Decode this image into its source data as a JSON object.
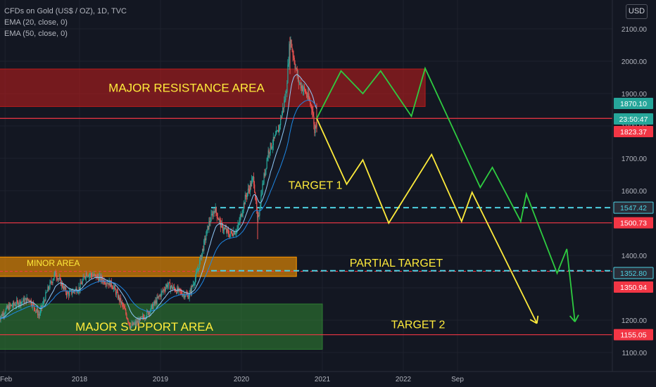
{
  "header": {
    "symbol": "CFDs on Gold (US$ / OZ), 1D, TVC",
    "indicators": [
      "EMA (20, close, 0)",
      "EMA (50, close, 0)"
    ],
    "currency": "USD"
  },
  "chart_data": {
    "type": "candlestick",
    "y_axis": {
      "ylim": [
        1080,
        2150
      ],
      "ticks": [
        1100,
        1200,
        1300,
        1400,
        1500,
        1600,
        1700,
        1800,
        1900,
        2000,
        2100
      ],
      "tick_labels": [
        "1100.00",
        "1200.00",
        "1300.00",
        "1400.00",
        "1500.00",
        "1600.00",
        "1700.00",
        "1800.00",
        "1900.00",
        "2000.00",
        "2100.00"
      ]
    },
    "x_axis": {
      "ticks": [
        {
          "label": "Feb",
          "t": 2017.08
        },
        {
          "label": "2018",
          "t": 2018.0
        },
        {
          "label": "2019",
          "t": 2019.0
        },
        {
          "label": "2020",
          "t": 2020.0
        },
        {
          "label": "2021",
          "t": 2021.0
        },
        {
          "label": "2022",
          "t": 2022.0
        },
        {
          "label": "Sep",
          "t": 2022.67
        }
      ]
    },
    "price_path": [
      [
        2017.0,
        1205
      ],
      [
        2017.12,
        1240
      ],
      [
        2017.25,
        1255
      ],
      [
        2017.38,
        1265
      ],
      [
        2017.5,
        1215
      ],
      [
        2017.6,
        1290
      ],
      [
        2017.7,
        1345
      ],
      [
        2017.85,
        1280
      ],
      [
        2018.0,
        1300
      ],
      [
        2018.08,
        1345
      ],
      [
        2018.25,
        1330
      ],
      [
        2018.4,
        1310
      ],
      [
        2018.55,
        1235
      ],
      [
        2018.63,
        1180
      ],
      [
        2018.75,
        1200
      ],
      [
        2018.85,
        1225
      ],
      [
        2018.95,
        1260
      ],
      [
        2019.08,
        1310
      ],
      [
        2019.25,
        1285
      ],
      [
        2019.35,
        1275
      ],
      [
        2019.45,
        1345
      ],
      [
        2019.6,
        1500
      ],
      [
        2019.67,
        1545
      ],
      [
        2019.75,
        1490
      ],
      [
        2019.85,
        1465
      ],
      [
        2019.95,
        1480
      ],
      [
        2020.05,
        1580
      ],
      [
        2020.15,
        1640
      ],
      [
        2020.2,
        1500
      ],
      [
        2020.25,
        1600
      ],
      [
        2020.33,
        1720
      ],
      [
        2020.45,
        1780
      ],
      [
        2020.55,
        1900
      ],
      [
        2020.6,
        2072
      ],
      [
        2020.7,
        1940
      ],
      [
        2020.8,
        1900
      ],
      [
        2020.88,
        1850
      ],
      [
        2020.9,
        1780
      ],
      [
        2020.93,
        1823
      ]
    ],
    "zones": [
      {
        "label": "MAJOR RESISTANCE AREA",
        "from": 1860,
        "to": 1976,
        "t_start": 2017.0,
        "t_end": 2022.27,
        "color": "#b71c1c"
      },
      {
        "label": "MINOR AREA",
        "from": 1335,
        "to": 1395,
        "t_start": 2017.0,
        "t_end": 2020.68,
        "color": "#ff9800"
      },
      {
        "label": "MAJOR SUPPORT AREA",
        "from": 1110,
        "to": 1250,
        "t_start": 2017.0,
        "t_end": 2021.0,
        "color": "#2e7d32"
      }
    ],
    "levels": [
      {
        "value": 1823.37,
        "color": "#f23645",
        "style": "solid"
      },
      {
        "value": 1500.73,
        "color": "#f23645",
        "style": "solid"
      },
      {
        "value": 1350.94,
        "color": "#f23645",
        "style": "dashed"
      },
      {
        "value": 1155.05,
        "color": "#f23645",
        "style": "solid"
      },
      {
        "value": 1547.42,
        "color": "#4dd0e1",
        "style": "dashed"
      },
      {
        "value": 1352.8,
        "color": "#4dd0e1",
        "style": "dashed"
      }
    ],
    "annotations": [
      {
        "text": "TARGET 1",
        "t": 2021.0,
        "y": 1605
      },
      {
        "text": "PARTIAL TARGET",
        "t": 2022.0,
        "y": 1365
      },
      {
        "text": "TARGET 2",
        "t": 2022.27,
        "y": 1175
      }
    ],
    "yellow_path": [
      [
        2020.93,
        1823
      ],
      [
        2021.3,
        1620
      ],
      [
        2021.5,
        1695
      ],
      [
        2021.82,
        1500
      ],
      [
        2022.35,
        1712
      ],
      [
        2022.72,
        1505
      ],
      [
        2022.85,
        1595
      ],
      [
        2023.65,
        1190
      ]
    ],
    "green_path": [
      [
        2020.93,
        1823
      ],
      [
        2021.23,
        1970
      ],
      [
        2021.5,
        1900
      ],
      [
        2021.72,
        1970
      ],
      [
        2022.1,
        1830
      ],
      [
        2022.27,
        1978
      ],
      [
        2022.95,
        1610
      ],
      [
        2023.1,
        1672
      ],
      [
        2023.45,
        1505
      ],
      [
        2023.52,
        1590
      ],
      [
        2023.9,
        1345
      ],
      [
        2024.02,
        1420
      ],
      [
        2024.12,
        1195
      ]
    ],
    "price_labels": [
      {
        "value": 1870.1,
        "text": "1870.10",
        "color": "#26a69a"
      },
      {
        "text": "23:50:47",
        "color": "#26a69a",
        "ref": 1845
      },
      {
        "value": 1823.37,
        "text": "1823.37",
        "color": "#f23645"
      },
      {
        "value": 1547.42,
        "text": "1547.42",
        "color": "#2a2e39",
        "fg": "#4dd0e1"
      },
      {
        "value": 1500.73,
        "text": "1500.73",
        "color": "#f23645"
      },
      {
        "value": 1352.8,
        "text": "1352.80",
        "color": "#2a2e39",
        "fg": "#4dd0e1"
      },
      {
        "value": 1350.94,
        "text": "1350.94",
        "color": "#f23645"
      },
      {
        "value": 1155.05,
        "text": "1155.05",
        "color": "#f23645"
      }
    ],
    "colors": {
      "up": "#26a69a",
      "down": "#ef5350",
      "ema20": "#90caf9",
      "ema50": "#1e88e5",
      "yellow": "#ffeb3b",
      "green": "#2ecc40",
      "text": "#ffeb3b"
    }
  }
}
